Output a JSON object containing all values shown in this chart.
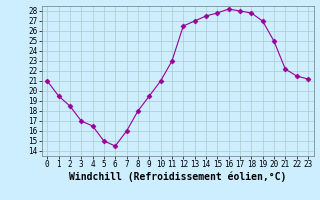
{
  "x": [
    0,
    1,
    2,
    3,
    4,
    5,
    6,
    7,
    8,
    9,
    10,
    11,
    12,
    13,
    14,
    15,
    16,
    17,
    18,
    19,
    20,
    21,
    22,
    23
  ],
  "y": [
    21,
    19.5,
    18.5,
    17,
    16.5,
    15,
    14.5,
    16,
    18,
    19.5,
    21,
    23,
    26.5,
    27,
    27.5,
    27.8,
    28.2,
    28,
    27.8,
    27,
    25,
    22.2,
    21.5,
    21.2
  ],
  "line_color": "#990099",
  "marker": "D",
  "marker_size": 2.5,
  "bg_color": "#cceeff",
  "grid_color": "#aacccc",
  "xlabel": "Windchill (Refroidissement éolien,°C)",
  "xlim": [
    -0.5,
    23.5
  ],
  "ylim": [
    13.5,
    28.5
  ],
  "yticks": [
    14,
    15,
    16,
    17,
    18,
    19,
    20,
    21,
    22,
    23,
    24,
    25,
    26,
    27,
    28
  ],
  "xticks": [
    0,
    1,
    2,
    3,
    4,
    5,
    6,
    7,
    8,
    9,
    10,
    11,
    12,
    13,
    14,
    15,
    16,
    17,
    18,
    19,
    20,
    21,
    22,
    23
  ],
  "tick_fontsize": 5.5,
  "xlabel_fontsize": 7.0
}
